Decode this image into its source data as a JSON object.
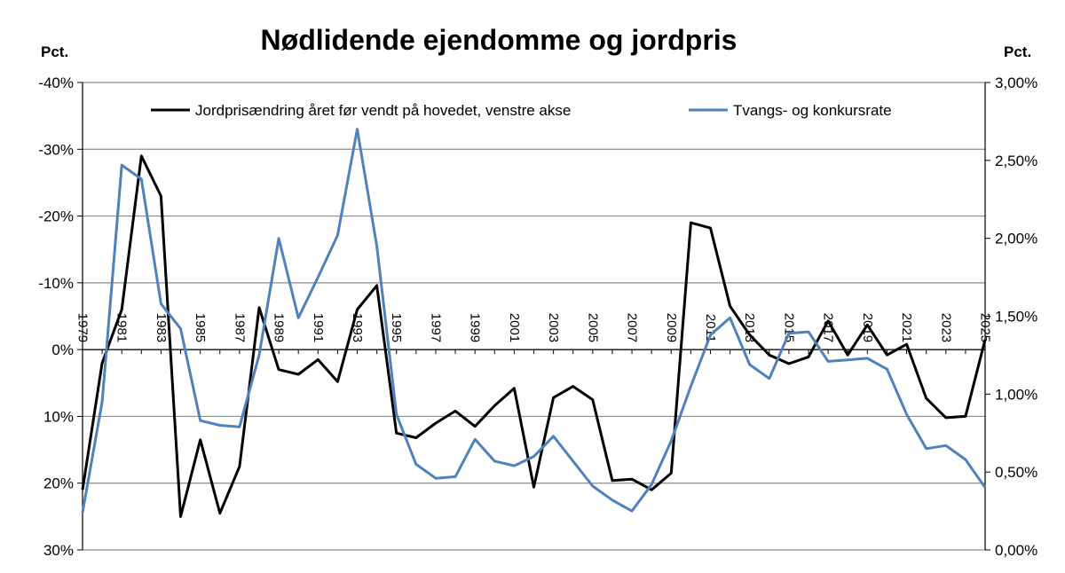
{
  "chart_data": {
    "type": "line",
    "title": "Nødlidende ejendomme og jordpris",
    "left_unit_label": "Pct.",
    "right_unit_label": "Pct.",
    "left_axis": {
      "ticks": [
        "-40%",
        "-30%",
        "-20%",
        "-10%",
        "0%",
        "10%",
        "20%",
        "30%"
      ],
      "ylim": [
        -40,
        30
      ],
      "inverted": true
    },
    "right_axis": {
      "ticks": [
        "0,00%",
        "0,50%",
        "1,00%",
        "1,50%",
        "2,00%",
        "2,50%",
        "3,00%"
      ],
      "ylim": [
        0,
        3
      ]
    },
    "x_tick_labels": [
      "1979",
      "1981",
      "1983",
      "1985",
      "1987",
      "1989",
      "1991",
      "1993",
      "1995",
      "1997",
      "1999",
      "2001",
      "2003",
      "2005",
      "2007",
      "2009",
      "2011",
      "2013",
      "2015",
      "2017",
      "2019",
      "2021",
      "2023",
      "2025"
    ],
    "x": [
      1979,
      1980,
      1981,
      1982,
      1983,
      1984,
      1985,
      1986,
      1987,
      1988,
      1989,
      1990,
      1991,
      1992,
      1993,
      1994,
      1995,
      1996,
      1997,
      1998,
      1999,
      2000,
      2001,
      2002,
      2003,
      2004,
      2005,
      2006,
      2007,
      2008,
      2009,
      2010,
      2011,
      2012,
      2013,
      2014,
      2015,
      2016,
      2017,
      2018,
      2019,
      2020,
      2021,
      2022,
      2023,
      2024,
      2025
    ],
    "grid": true,
    "legend_position": "top",
    "series": [
      {
        "name": "Jordprisændring året før vendt på hovedet, venstre akse",
        "axis": "left",
        "color": "#000000",
        "values": [
          21,
          2,
          -6,
          -29,
          -23,
          25,
          13.5,
          24.5,
          17.5,
          -6.3,
          3,
          3.7,
          1.5,
          4.8,
          -6,
          -9.6,
          12.5,
          13.2,
          11,
          9.2,
          11.5,
          8.4,
          5.8,
          20.6,
          7.2,
          5.5,
          7.5,
          19.6,
          19.4,
          21,
          18.5,
          -19,
          -18.2,
          -6.5,
          -2.2,
          0.8,
          2.1,
          1.1,
          -4.3,
          0.8,
          -3.7,
          0.8,
          -0.8,
          7.3,
          10.2,
          10,
          -1.5
        ]
      },
      {
        "name": "Tvangs- og konkursrate",
        "axis": "right",
        "color": "#4f81bd",
        "values": [
          0.24,
          0.95,
          2.47,
          2.38,
          1.58,
          1.42,
          0.83,
          0.8,
          0.79,
          1.25,
          2.0,
          1.49,
          1.75,
          2.02,
          2.7,
          1.95,
          0.87,
          0.55,
          0.46,
          0.47,
          0.71,
          0.57,
          0.54,
          0.6,
          0.73,
          0.57,
          0.41,
          0.32,
          0.25,
          0.42,
          0.7,
          1.05,
          1.38,
          1.49,
          1.19,
          1.1,
          1.39,
          1.4,
          1.21,
          1.22,
          1.23,
          1.16,
          0.87,
          0.65,
          0.67,
          0.58,
          0.4
        ]
      }
    ]
  }
}
